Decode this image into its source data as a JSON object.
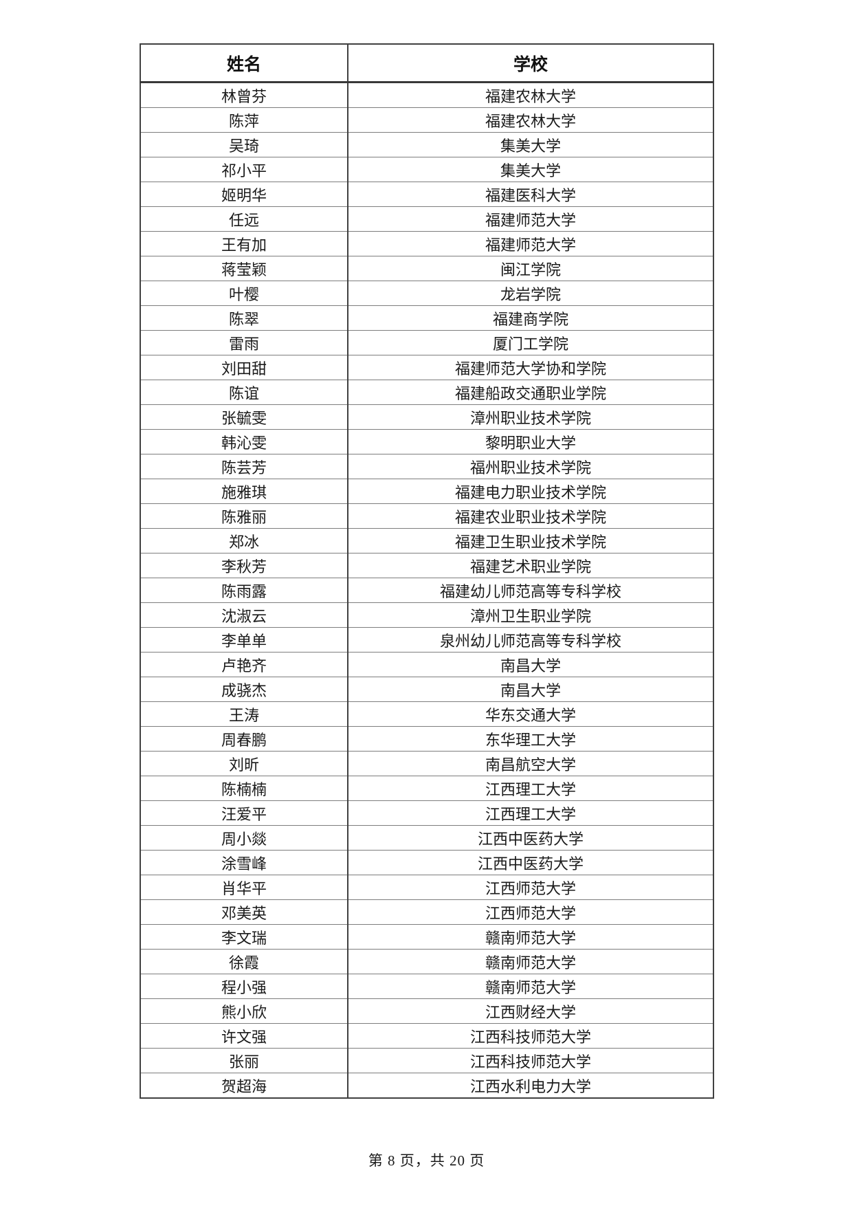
{
  "document": {
    "footer_text": "第 8 页，共 20 页"
  },
  "table": {
    "columns": {
      "name": "姓名",
      "school": "学校"
    },
    "rows": [
      {
        "name": "林曾芬",
        "school": "福建农林大学"
      },
      {
        "name": "陈萍",
        "school": "福建农林大学"
      },
      {
        "name": "吴琦",
        "school": "集美大学"
      },
      {
        "name": "祁小平",
        "school": "集美大学"
      },
      {
        "name": "姬明华",
        "school": "福建医科大学"
      },
      {
        "name": "任远",
        "school": "福建师范大学"
      },
      {
        "name": "王有加",
        "school": "福建师范大学"
      },
      {
        "name": "蒋莹颖",
        "school": "闽江学院"
      },
      {
        "name": "叶樱",
        "school": "龙岩学院"
      },
      {
        "name": "陈翠",
        "school": "福建商学院"
      },
      {
        "name": "雷雨",
        "school": "厦门工学院"
      },
      {
        "name": "刘田甜",
        "school": "福建师范大学协和学院"
      },
      {
        "name": "陈谊",
        "school": "福建船政交通职业学院"
      },
      {
        "name": "张毓雯",
        "school": "漳州职业技术学院"
      },
      {
        "name": "韩沁雯",
        "school": "黎明职业大学"
      },
      {
        "name": "陈芸芳",
        "school": "福州职业技术学院"
      },
      {
        "name": "施雅琪",
        "school": "福建电力职业技术学院"
      },
      {
        "name": "陈雅丽",
        "school": "福建农业职业技术学院"
      },
      {
        "name": "郑冰",
        "school": "福建卫生职业技术学院"
      },
      {
        "name": "李秋芳",
        "school": "福建艺术职业学院"
      },
      {
        "name": "陈雨露",
        "school": "福建幼儿师范高等专科学校"
      },
      {
        "name": "沈淑云",
        "school": "漳州卫生职业学院"
      },
      {
        "name": "李单单",
        "school": "泉州幼儿师范高等专科学校"
      },
      {
        "name": "卢艳齐",
        "school": "南昌大学"
      },
      {
        "name": "成骁杰",
        "school": "南昌大学"
      },
      {
        "name": "王涛",
        "school": "华东交通大学"
      },
      {
        "name": "周春鹏",
        "school": "东华理工大学"
      },
      {
        "name": "刘昕",
        "school": "南昌航空大学"
      },
      {
        "name": "陈楠楠",
        "school": "江西理工大学"
      },
      {
        "name": "汪爱平",
        "school": "江西理工大学"
      },
      {
        "name": "周小燚",
        "school": "江西中医药大学"
      },
      {
        "name": "涂雪峰",
        "school": "江西中医药大学"
      },
      {
        "name": "肖华平",
        "school": "江西师范大学"
      },
      {
        "name": "邓美英",
        "school": "江西师范大学"
      },
      {
        "name": "李文瑞",
        "school": "赣南师范大学"
      },
      {
        "name": "徐霞",
        "school": "赣南师范大学"
      },
      {
        "name": "程小强",
        "school": "赣南师范大学"
      },
      {
        "name": "熊小欣",
        "school": "江西财经大学"
      },
      {
        "name": "许文强",
        "school": "江西科技师范大学"
      },
      {
        "name": "张丽",
        "school": "江西科技师范大学"
      },
      {
        "name": "贺超海",
        "school": "江西水利电力大学"
      }
    ]
  }
}
